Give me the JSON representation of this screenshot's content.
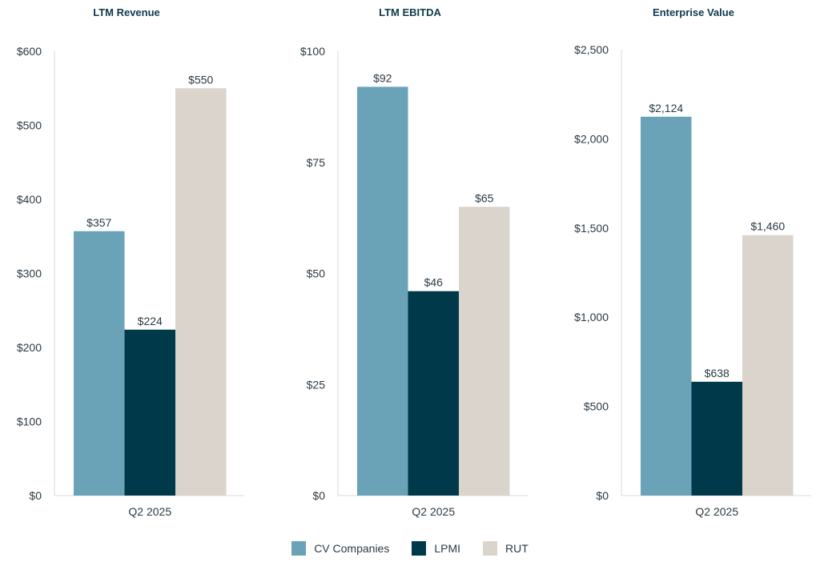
{
  "colors": {
    "CV Companies": "#6aa3b8",
    "LPMI": "#003a4a",
    "RUT": "#dbd4cd",
    "axis": "#d9d9d9",
    "title": "#0d3a4a",
    "text": "#2b3a44"
  },
  "legend": [
    "CV Companies",
    "LPMI",
    "RUT"
  ],
  "chart_data": [
    {
      "type": "bar",
      "title": "LTM Revenue",
      "categories": [
        "Q2 2025"
      ],
      "series": [
        {
          "name": "CV Companies",
          "values": [
            357
          ],
          "label": "$357"
        },
        {
          "name": "LPMI",
          "values": [
            224
          ],
          "label": "$224"
        },
        {
          "name": "RUT",
          "values": [
            550
          ],
          "label": "$550"
        }
      ],
      "ylim": [
        0,
        600
      ],
      "yticks": [
        0,
        100,
        200,
        300,
        400,
        500,
        600
      ],
      "ytick_labels": [
        "$0",
        "$100",
        "$200",
        "$300",
        "$400",
        "$500",
        "$600"
      ]
    },
    {
      "type": "bar",
      "title": "LTM EBITDA",
      "categories": [
        "Q2 2025"
      ],
      "series": [
        {
          "name": "CV Companies",
          "values": [
            92
          ],
          "label": "$92"
        },
        {
          "name": "LPMI",
          "values": [
            46
          ],
          "label": "$46"
        },
        {
          "name": "RUT",
          "values": [
            65
          ],
          "label": "$65"
        }
      ],
      "ylim": [
        0,
        100
      ],
      "yticks": [
        0,
        25,
        50,
        75,
        100
      ],
      "ytick_labels": [
        "$0",
        "$25",
        "$50",
        "$75",
        "$100"
      ]
    },
    {
      "type": "bar",
      "title": "Enterprise Value",
      "categories": [
        "Q2 2025"
      ],
      "series": [
        {
          "name": "CV Companies",
          "values": [
            2124
          ],
          "label": "$2,124"
        },
        {
          "name": "LPMI",
          "values": [
            638
          ],
          "label": "$638"
        },
        {
          "name": "RUT",
          "values": [
            1460
          ],
          "label": "$1,460"
        }
      ],
      "ylim": [
        0,
        2500
      ],
      "yticks": [
        0,
        500,
        1000,
        1500,
        2000,
        2500
      ],
      "ytick_labels": [
        "$0",
        "$500",
        "$1,000",
        "$1,500",
        "$2,000",
        "$2,500"
      ]
    }
  ]
}
